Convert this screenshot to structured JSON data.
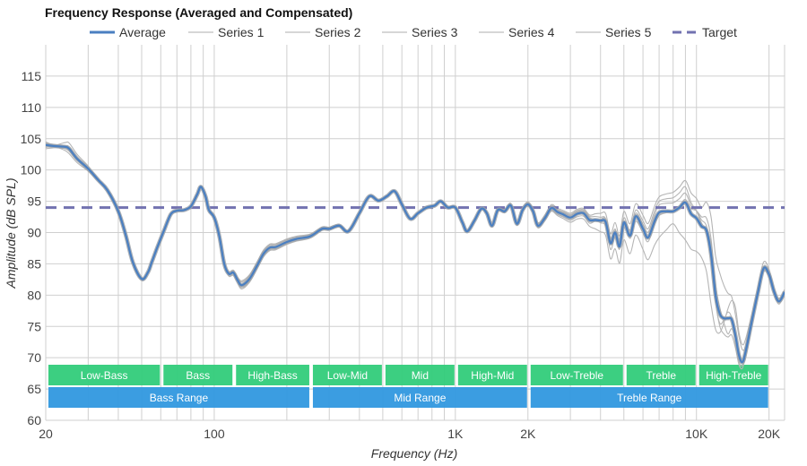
{
  "chart_data": {
    "type": "line",
    "title": "Frequency Response (Averaged and Compensated)",
    "xlabel": "Frequency (Hz)",
    "ylabel": "Amplitude (dB SPL)",
    "x_scale": "log",
    "xlim": [
      20,
      23200
    ],
    "ylim": [
      60,
      120
    ],
    "grid": true,
    "legend_position": "top-center",
    "x_ticks": [
      {
        "value": 20,
        "label": "20"
      },
      {
        "value": 100,
        "label": "100"
      },
      {
        "value": 1000,
        "label": "1K"
      },
      {
        "value": 2000,
        "label": "2K"
      },
      {
        "value": 10000,
        "label": "10K"
      },
      {
        "value": 20000,
        "label": "20K"
      }
    ],
    "x_minor_grid": [
      30,
      40,
      50,
      60,
      70,
      80,
      90,
      200,
      300,
      400,
      500,
      600,
      700,
      800,
      900,
      3000,
      4000,
      5000,
      6000,
      7000,
      8000,
      9000
    ],
    "y_ticks": [
      60,
      65,
      70,
      75,
      80,
      85,
      90,
      95,
      100,
      105,
      110,
      115
    ],
    "legend": [
      {
        "name": "Average",
        "color": "#4a7fc1",
        "style": "solid"
      },
      {
        "name": "Series 1",
        "color": "#c8c8c8",
        "style": "solid"
      },
      {
        "name": "Series 2",
        "color": "#c8c8c8",
        "style": "solid"
      },
      {
        "name": "Series 3",
        "color": "#c8c8c8",
        "style": "solid"
      },
      {
        "name": "Series 4",
        "color": "#c8c8c8",
        "style": "solid"
      },
      {
        "name": "Series 5",
        "color": "#c8c8c8",
        "style": "solid"
      },
      {
        "name": "Target",
        "color": "#7272b0",
        "style": "dashed"
      }
    ],
    "target": {
      "name": "Target",
      "value": 94
    },
    "average": {
      "name": "Average",
      "x": [
        20,
        22,
        24,
        25,
        27,
        30,
        33,
        36,
        40,
        43,
        46,
        50,
        53,
        55,
        58,
        62,
        66,
        70,
        75,
        80,
        85,
        88,
        92,
        95,
        100,
        105,
        110,
        115,
        120,
        125,
        130,
        140,
        150,
        160,
        170,
        180,
        200,
        220,
        250,
        280,
        300,
        330,
        360,
        400,
        440,
        480,
        520,
        560,
        600,
        650,
        700,
        760,
        820,
        870,
        930,
        1000,
        1070,
        1120,
        1200,
        1280,
        1350,
        1420,
        1500,
        1600,
        1700,
        1800,
        1900,
        2000,
        2100,
        2200,
        2350,
        2500,
        2650,
        2800,
        3000,
        3200,
        3400,
        3600,
        3800,
        4000,
        4200,
        4400,
        4600,
        4800,
        5000,
        5300,
        5600,
        6000,
        6300,
        6700,
        7000,
        7500,
        8000,
        8500,
        9000,
        9500,
        10000,
        10500,
        11000,
        11500,
        12000,
        12500,
        13000,
        13500,
        14000,
        14500,
        15000,
        15500,
        16000,
        17000,
        18000,
        19000,
        20000,
        21000,
        22000,
        23200
      ],
      "y": [
        104,
        103.8,
        103.7,
        103.4,
        101.8,
        100.2,
        98.4,
        96.8,
        93.4,
        89.5,
        85.2,
        82.6,
        83.6,
        85.2,
        87.6,
        90.4,
        92.9,
        93.5,
        93.6,
        94.2,
        96.1,
        97.3,
        95.8,
        93.6,
        92.4,
        89.4,
        85,
        83.4,
        83.6,
        82.4,
        81.6,
        82.6,
        84.6,
        86.6,
        87.6,
        87.7,
        88.5,
        89.0,
        89.4,
        90.6,
        90.6,
        91.1,
        90.2,
        93.1,
        95.8,
        95.1,
        95.8,
        96.6,
        94.5,
        92.2,
        93.1,
        94.0,
        94.3,
        95.0,
        94.0,
        94.0,
        91.6,
        90.2,
        91.9,
        93.8,
        93.1,
        91.1,
        93.6,
        93.4,
        94.3,
        91.4,
        93.6,
        94.5,
        93.4,
        91.1,
        92.3,
        93.9,
        93.3,
        92.9,
        92.4,
        93.0,
        93.1,
        92.0,
        92.0,
        91.9,
        91.7,
        88.3,
        90.0,
        87.8,
        91.6,
        89.5,
        92.6,
        90.6,
        89.2,
        91.8,
        93.2,
        93.4,
        93.4,
        94.0,
        94.8,
        93.0,
        92.3,
        91.0,
        90.3,
        86.5,
        80.0,
        77.0,
        76.3,
        76.3,
        76.1,
        73.6,
        70.4,
        69.3,
        71.0,
        76.0,
        80.5,
        84.3,
        83.3,
        80.5,
        79.0,
        80.5
      ]
    },
    "series": [
      {
        "name": "Series 1",
        "offsets": [
          [
            20,
            0.5
          ],
          [
            25,
            -0.8
          ],
          [
            40,
            0.2
          ],
          [
            60,
            0.1
          ],
          [
            110,
            -0.3
          ],
          [
            130,
            -0.6
          ],
          [
            500,
            0
          ],
          [
            2000,
            0.4
          ],
          [
            3600,
            0.8
          ],
          [
            4400,
            1.5
          ],
          [
            5600,
            2.0
          ],
          [
            7000,
            2.5
          ],
          [
            9000,
            3.5
          ],
          [
            10500,
            3.0
          ],
          [
            11500,
            6.0
          ],
          [
            12500,
            6.5
          ],
          [
            13500,
            4.0
          ],
          [
            15000,
            3.0
          ],
          [
            16000,
            1.0
          ],
          [
            19000,
            1.0
          ],
          [
            23200,
            0.3
          ]
        ]
      },
      {
        "name": "Series 2",
        "offsets": [
          [
            20,
            -0.4
          ],
          [
            25,
            0.9
          ],
          [
            40,
            -0.3
          ],
          [
            60,
            0
          ],
          [
            110,
            0.3
          ],
          [
            130,
            0.5
          ],
          [
            500,
            0.1
          ],
          [
            2000,
            -0.2
          ],
          [
            3600,
            -1.0
          ],
          [
            4400,
            -2.5
          ],
          [
            5600,
            -3.0
          ],
          [
            7000,
            -4.0
          ],
          [
            8000,
            -2.0
          ],
          [
            9000,
            -6.0
          ],
          [
            10500,
            -5.0
          ],
          [
            11500,
            -8.0
          ],
          [
            12500,
            -3.0
          ],
          [
            13500,
            1.5
          ],
          [
            14500,
            4.5
          ],
          [
            16000,
            2.0
          ],
          [
            19000,
            -0.5
          ],
          [
            23200,
            -0.4
          ]
        ]
      },
      {
        "name": "Series 3",
        "offsets": [
          [
            20,
            0.2
          ],
          [
            25,
            -0.4
          ],
          [
            40,
            0.4
          ],
          [
            60,
            -0.1
          ],
          [
            110,
            0.1
          ],
          [
            130,
            -0.4
          ],
          [
            500,
            -0.1
          ],
          [
            2000,
            0.3
          ],
          [
            3600,
            0.4
          ],
          [
            4400,
            -1.0
          ],
          [
            5600,
            0.5
          ],
          [
            7000,
            1.2
          ],
          [
            9000,
            1.5
          ],
          [
            10500,
            1.0
          ],
          [
            11500,
            0.5
          ],
          [
            12500,
            -2.0
          ],
          [
            13500,
            -3.0
          ],
          [
            15000,
            -1.5
          ],
          [
            16000,
            -0.5
          ],
          [
            19000,
            0.3
          ],
          [
            23200,
            0.4
          ]
        ]
      },
      {
        "name": "Series 4",
        "offsets": [
          [
            20,
            -0.6
          ],
          [
            25,
            0.3
          ],
          [
            40,
            -0.2
          ],
          [
            60,
            0.1
          ],
          [
            110,
            -0.2
          ],
          [
            130,
            0.7
          ],
          [
            500,
            0
          ],
          [
            2000,
            -0.3
          ],
          [
            3600,
            -0.5
          ],
          [
            4400,
            0.8
          ],
          [
            5600,
            -0.8
          ],
          [
            7000,
            -0.5
          ],
          [
            9000,
            0.5
          ],
          [
            10500,
            1.5
          ],
          [
            11500,
            2.5
          ],
          [
            12500,
            1.0
          ],
          [
            13500,
            -2.5
          ],
          [
            15000,
            0.5
          ],
          [
            16000,
            -1.0
          ],
          [
            19000,
            0
          ],
          [
            23200,
            -0.2
          ]
        ]
      },
      {
        "name": "Series 5",
        "offsets": [
          [
            20,
            0.3
          ],
          [
            25,
            0.2
          ],
          [
            40,
            -0.4
          ],
          [
            60,
            -0.1
          ],
          [
            110,
            0.2
          ],
          [
            130,
            -0.2
          ],
          [
            500,
            0
          ],
          [
            2000,
            0.2
          ],
          [
            3600,
            0.6
          ],
          [
            4400,
            0.5
          ],
          [
            5600,
            1.0
          ],
          [
            7000,
            1.8
          ],
          [
            9000,
            2.5
          ],
          [
            10500,
            0.5
          ],
          [
            11500,
            -1.0
          ],
          [
            12500,
            -1.5
          ],
          [
            13500,
            1.0
          ],
          [
            15000,
            -1.0
          ],
          [
            16000,
            0
          ],
          [
            19000,
            -0.3
          ],
          [
            23200,
            0
          ]
        ]
      }
    ],
    "bands": [
      {
        "label": "Low-Bass",
        "from": 20,
        "to": 60,
        "row": 1,
        "color": "#34cd7c"
      },
      {
        "label": "Bass",
        "from": 60,
        "to": 120,
        "row": 1,
        "color": "#34cd7c"
      },
      {
        "label": "High-Bass",
        "from": 120,
        "to": 250,
        "row": 1,
        "color": "#34cd7c"
      },
      {
        "label": "Low-Mid",
        "from": 250,
        "to": 500,
        "row": 1,
        "color": "#34cd7c"
      },
      {
        "label": "Mid",
        "from": 500,
        "to": 1000,
        "row": 1,
        "color": "#34cd7c"
      },
      {
        "label": "High-Mid",
        "from": 1000,
        "to": 2000,
        "row": 1,
        "color": "#34cd7c"
      },
      {
        "label": "Low-Treble",
        "from": 2000,
        "to": 5000,
        "row": 1,
        "color": "#34cd7c"
      },
      {
        "label": "Treble",
        "from": 5000,
        "to": 10000,
        "row": 1,
        "color": "#34cd7c"
      },
      {
        "label": "High-Treble",
        "from": 10000,
        "to": 20000,
        "row": 1,
        "color": "#34cd7c"
      },
      {
        "label": "Bass Range",
        "from": 20,
        "to": 250,
        "row": 2,
        "color": "#3399e0"
      },
      {
        "label": "Mid Range",
        "from": 250,
        "to": 2000,
        "row": 2,
        "color": "#3399e0"
      },
      {
        "label": "Treble Range",
        "from": 2000,
        "to": 20000,
        "row": 2,
        "color": "#3399e0"
      }
    ]
  }
}
